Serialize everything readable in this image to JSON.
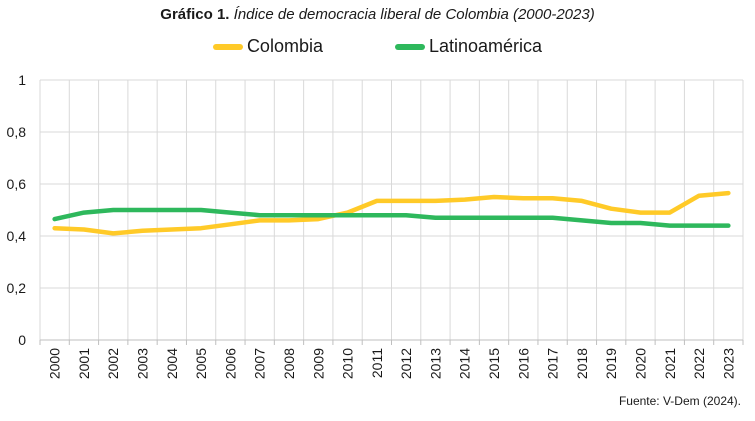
{
  "header": {
    "title_bold": "Gráfico 1.",
    "title_italic": "Índice de democracia liberal de Colombia (2000-2023)"
  },
  "footer": {
    "source": "Fuente: V-Dem (2024)."
  },
  "colors": {
    "colombia": "#ffca28",
    "latinoamerica": "#2eb85c",
    "grid": "#d9d9d9"
  },
  "chart_data": {
    "type": "line",
    "title": "Gráfico 1. Índice de democracia liberal de Colombia (2000-2023)",
    "xlabel": "",
    "ylabel": "",
    "ylim": [
      0,
      1
    ],
    "yticks": [
      "0",
      "0,2",
      "0,4",
      "0,6",
      "0,8",
      "1"
    ],
    "ytick_values": [
      0,
      0.2,
      0.4,
      0.6,
      0.8,
      1
    ],
    "grid": true,
    "legend_position": "top",
    "x": [
      "2000",
      "2001",
      "2002",
      "2003",
      "2004",
      "2005",
      "2006",
      "2007",
      "2008",
      "2009",
      "2010",
      "2011",
      "2012",
      "2013",
      "2014",
      "2015",
      "2016",
      "2017",
      "2018",
      "2019",
      "2020",
      "2021",
      "2022",
      "2023"
    ],
    "series": [
      {
        "name": "Colombia",
        "values": [
          0.43,
          0.425,
          0.41,
          0.42,
          0.425,
          0.43,
          0.445,
          0.46,
          0.46,
          0.465,
          0.49,
          0.535,
          0.535,
          0.535,
          0.54,
          0.55,
          0.545,
          0.545,
          0.535,
          0.505,
          0.49,
          0.49,
          0.555,
          0.565
        ]
      },
      {
        "name": "Latinoamérica",
        "values": [
          0.465,
          0.49,
          0.5,
          0.5,
          0.5,
          0.5,
          0.49,
          0.48,
          0.48,
          0.48,
          0.48,
          0.48,
          0.48,
          0.47,
          0.47,
          0.47,
          0.47,
          0.47,
          0.46,
          0.45,
          0.45,
          0.44,
          0.44,
          0.44
        ]
      }
    ]
  }
}
